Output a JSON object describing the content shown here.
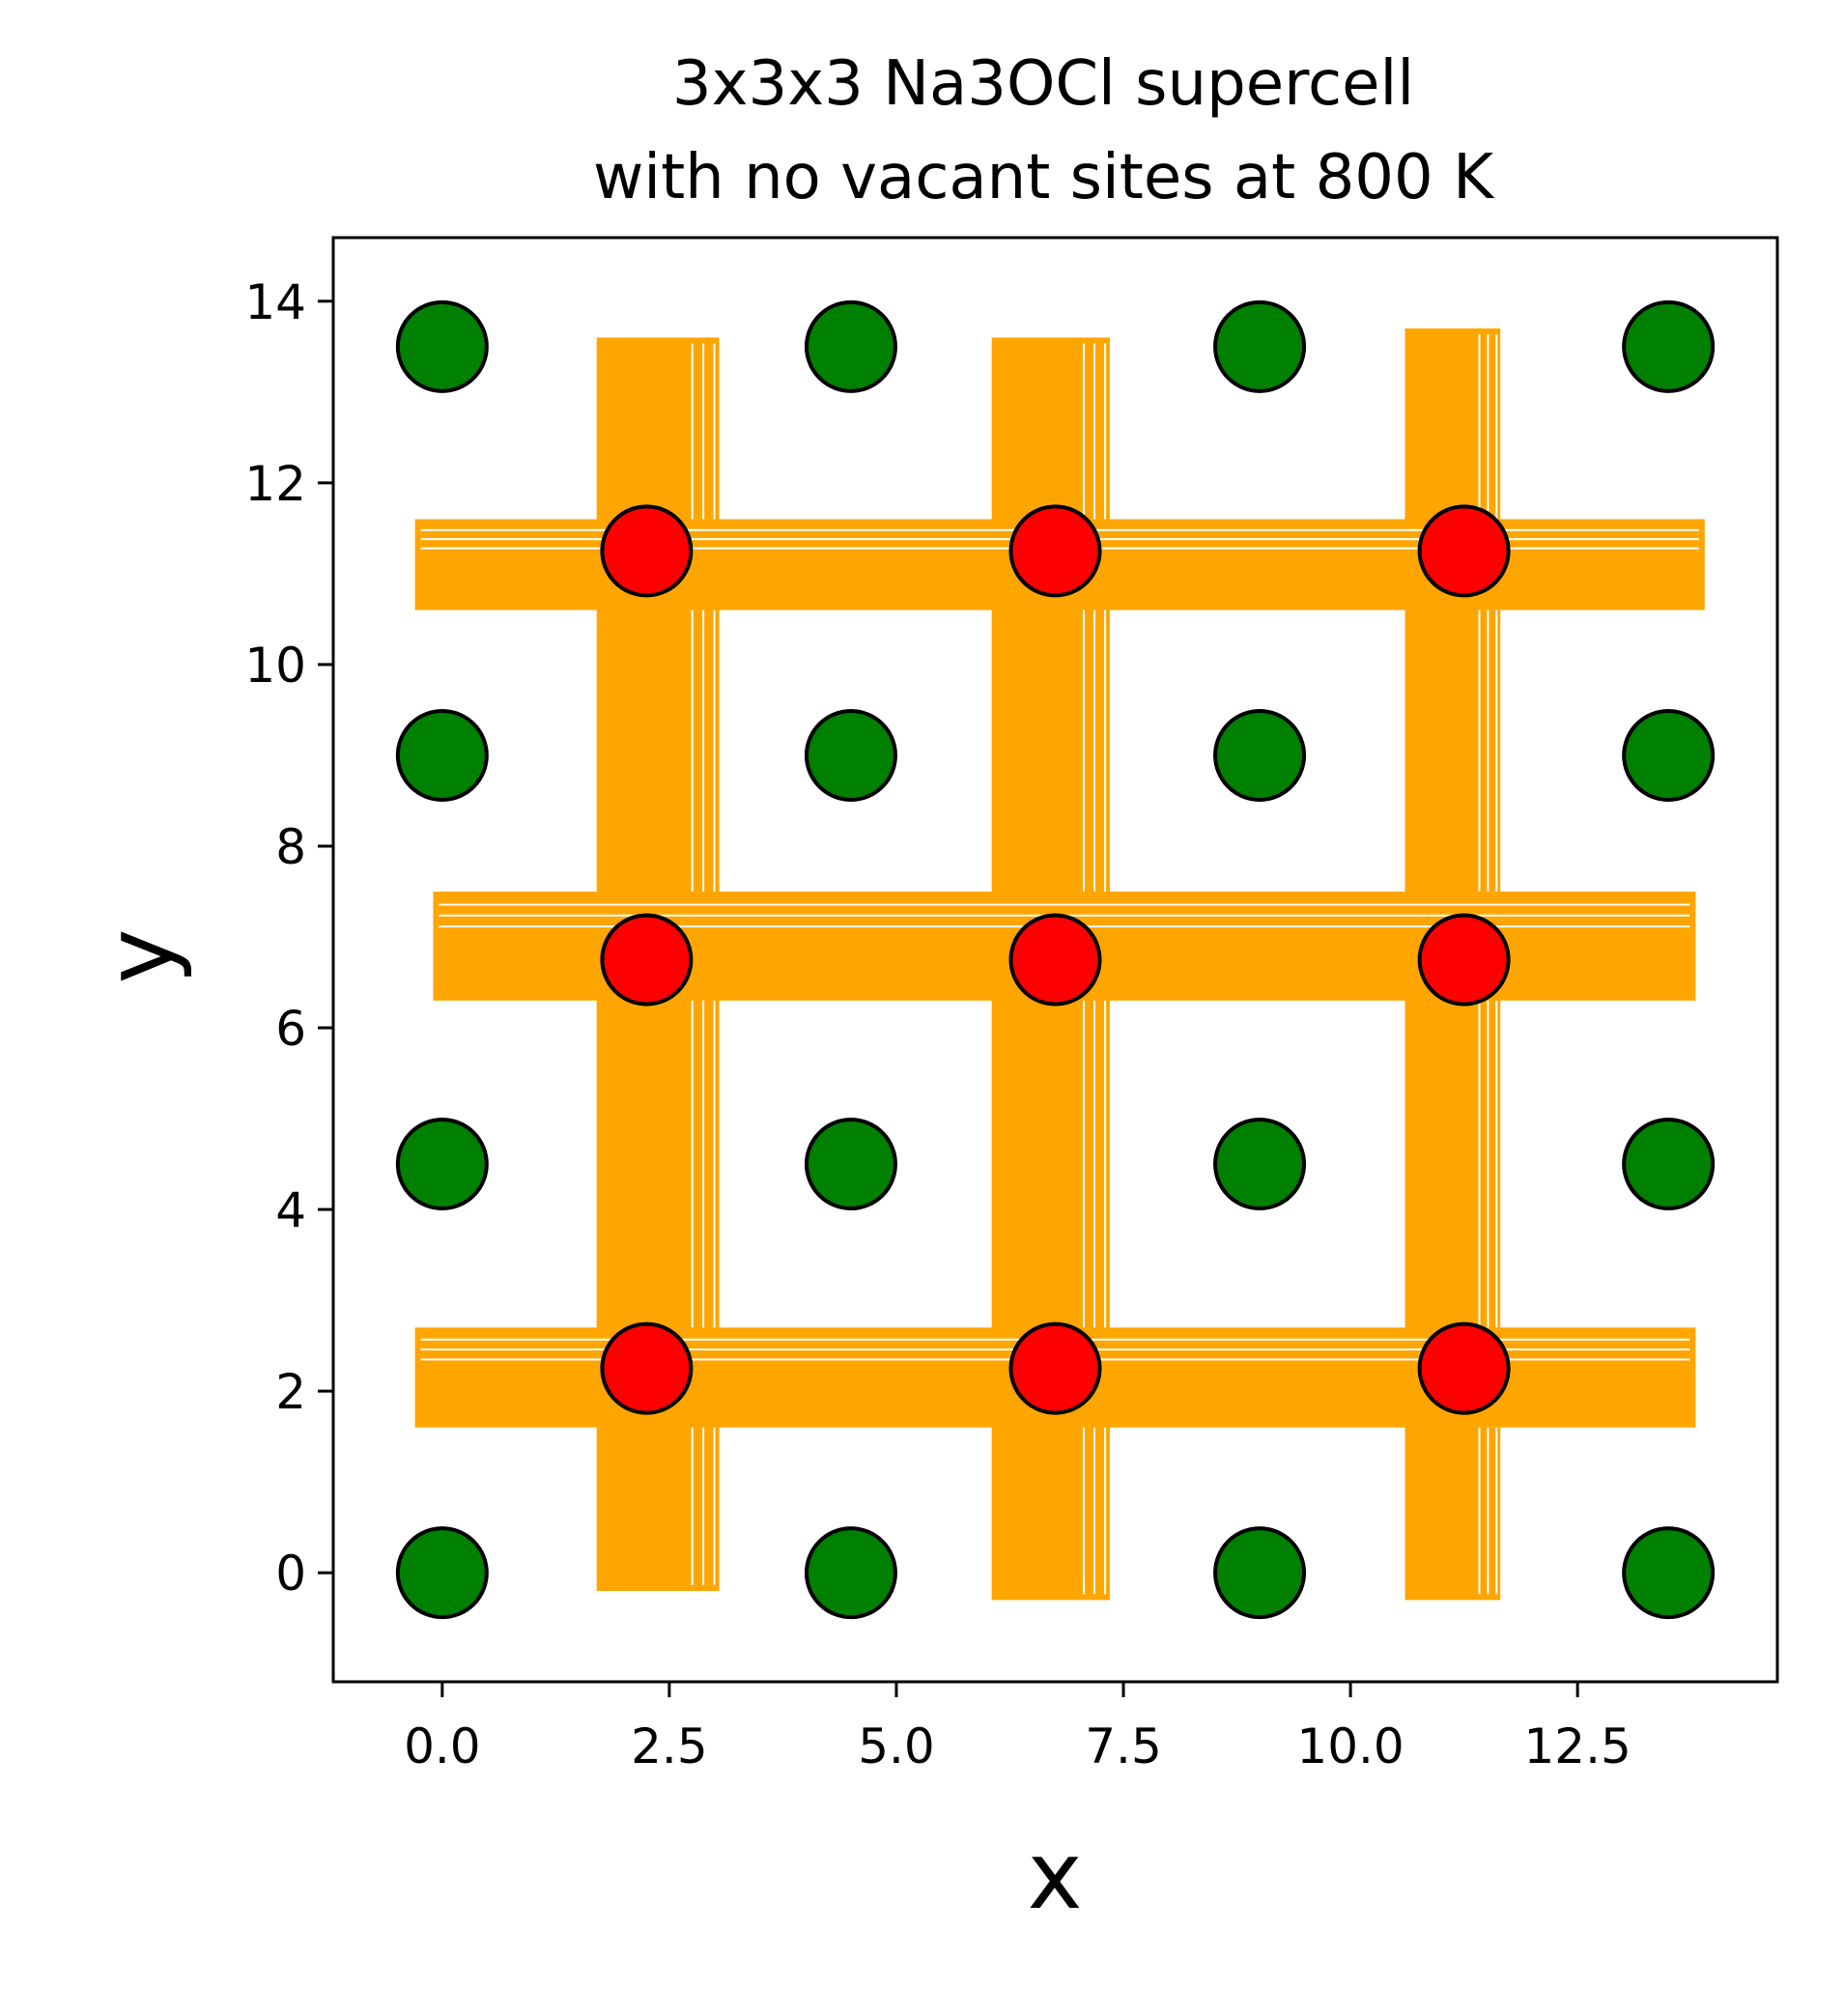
{
  "chart_data": {
    "type": "scatter",
    "title_lines": [
      "3x3x3 Na3OCl supercell",
      "with no vacant sites at 800 K"
    ],
    "xlabel": "x",
    "ylabel": "y",
    "xlim": [
      -1.2,
      14.7
    ],
    "ylim": [
      -1.2,
      14.7
    ],
    "xticks": [
      0.0,
      2.5,
      5.0,
      7.5,
      10.0,
      12.5
    ],
    "xtick_labels": [
      "0.0",
      "2.5",
      "5.0",
      "7.5",
      "10.0",
      "12.5"
    ],
    "yticks": [
      0,
      2,
      4,
      6,
      8,
      10,
      12,
      14
    ],
    "ytick_labels": [
      "0",
      "2",
      "4",
      "6",
      "8",
      "10",
      "12",
      "14"
    ],
    "grid": false,
    "series": [
      {
        "kind": "points",
        "color": "#008000",
        "edge_color": "#000000",
        "points": [
          [
            0,
            0
          ],
          [
            4.5,
            0
          ],
          [
            9,
            0
          ],
          [
            13.5,
            0
          ],
          [
            0,
            4.5
          ],
          [
            4.5,
            4.5
          ],
          [
            9,
            4.5
          ],
          [
            13.5,
            4.5
          ],
          [
            0,
            9
          ],
          [
            4.5,
            9
          ],
          [
            9,
            9
          ],
          [
            13.5,
            9
          ],
          [
            0,
            13.5
          ],
          [
            4.5,
            13.5
          ],
          [
            9,
            13.5
          ],
          [
            13.5,
            13.5
          ]
        ]
      },
      {
        "kind": "trajectory_bands",
        "color": "#ffa500",
        "vertical_bands": [
          {
            "x": 2.25,
            "x_range": [
              1.7,
              3.05
            ],
            "y_range": [
              -0.2,
              13.6
            ]
          },
          {
            "x": 6.75,
            "x_range": [
              6.05,
              7.35
            ],
            "y_range": [
              -0.3,
              13.6
            ]
          },
          {
            "x": 11.25,
            "x_range": [
              10.6,
              11.65
            ],
            "y_range": [
              -0.3,
              13.7
            ]
          }
        ],
        "horizontal_bands": [
          {
            "y": 11.1,
            "y_range": [
              10.6,
              11.6
            ],
            "x_range": [
              -0.3,
              13.9
            ]
          },
          {
            "y": 6.8,
            "y_range": [
              6.3,
              7.5
            ],
            "x_range": [
              -0.1,
              13.8
            ]
          },
          {
            "y": 2.2,
            "y_range": [
              1.6,
              2.7
            ],
            "x_range": [
              -0.3,
              13.8
            ]
          }
        ]
      },
      {
        "kind": "points",
        "color": "#ff0000",
        "edge_color": "#000000",
        "points": [
          [
            2.25,
            2.25
          ],
          [
            6.75,
            2.25
          ],
          [
            11.25,
            2.25
          ],
          [
            2.25,
            6.75
          ],
          [
            6.75,
            6.75
          ],
          [
            11.25,
            6.75
          ],
          [
            2.25,
            11.25
          ],
          [
            6.75,
            11.25
          ],
          [
            11.25,
            11.25
          ]
        ]
      }
    ]
  }
}
